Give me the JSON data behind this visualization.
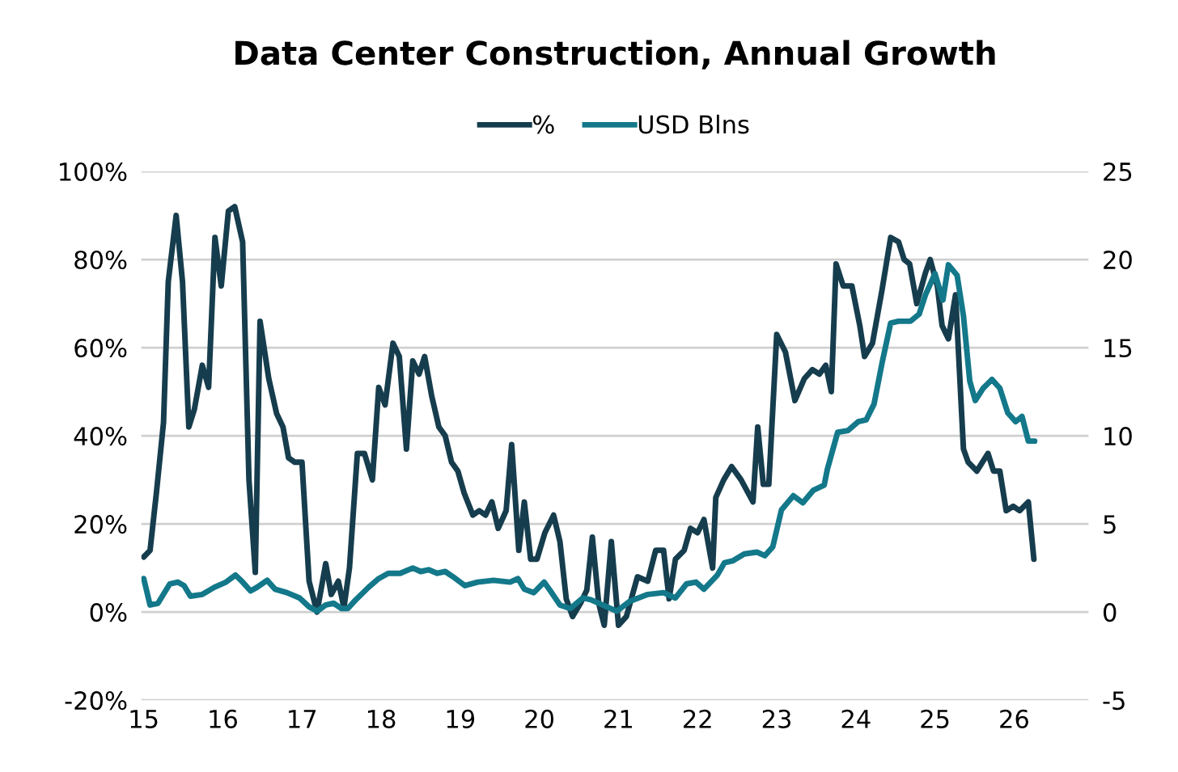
{
  "chart_data": {
    "type": "line",
    "title": "Data Center Construction, Annual Growth",
    "legend": "top",
    "grid": "y",
    "xlim": [
      14.97,
      26.94
    ],
    "xticks": [
      15,
      16,
      17,
      18,
      19,
      20,
      21,
      22,
      23,
      24,
      25,
      26
    ],
    "ylim": [
      -20,
      100
    ],
    "yticks": [
      {
        "value": -20,
        "label": "-20%"
      },
      {
        "value": 0,
        "label": "0%"
      },
      {
        "value": 20,
        "label": "20%"
      },
      {
        "value": 40,
        "label": "40%"
      },
      {
        "value": 60,
        "label": "60%"
      },
      {
        "value": 80,
        "label": "80%"
      },
      {
        "value": 100,
        "label": "100%"
      }
    ],
    "y2lim": [
      -5,
      25
    ],
    "y2ticks": [
      -5,
      0,
      5,
      10,
      15,
      20,
      25
    ],
    "series": [
      {
        "name": "%",
        "color": "#163d4d",
        "x": [
          15.0,
          15.08,
          15.16,
          15.25,
          15.31,
          15.41,
          15.49,
          15.57,
          15.64,
          15.74,
          15.82,
          15.9,
          15.98,
          16.07,
          16.15,
          16.25,
          16.33,
          16.41,
          16.47,
          16.58,
          16.68,
          16.76,
          16.83,
          16.91,
          17.0,
          17.09,
          17.19,
          17.3,
          17.37,
          17.46,
          17.53,
          17.6,
          17.7,
          17.79,
          17.89,
          17.97,
          18.05,
          18.15,
          18.23,
          18.32,
          18.4,
          18.48,
          18.55,
          18.64,
          18.73,
          18.81,
          18.89,
          18.97,
          19.05,
          19.16,
          19.24,
          19.32,
          19.4,
          19.48,
          19.58,
          19.65,
          19.74,
          19.81,
          19.89,
          19.97,
          20.07,
          20.18,
          20.26,
          20.34,
          20.42,
          20.52,
          20.6,
          20.67,
          20.75,
          20.82,
          20.91,
          21.0,
          21.1,
          21.24,
          21.37,
          21.47,
          21.57,
          21.64,
          21.72,
          21.83,
          21.91,
          22.0,
          22.08,
          22.19,
          22.23,
          22.33,
          22.43,
          22.55,
          22.7,
          22.76,
          22.83,
          22.9,
          23.0,
          23.11,
          23.23,
          23.35,
          23.45,
          23.54,
          23.62,
          23.69,
          23.75,
          23.84,
          23.95,
          24.05,
          24.11,
          24.21,
          24.33,
          24.44,
          24.54,
          24.61,
          24.68,
          24.77,
          24.88,
          24.94,
          25.03,
          25.09,
          25.17,
          25.26,
          25.36,
          25.42,
          25.53,
          25.67,
          25.74,
          25.82,
          25.9,
          25.99,
          26.07,
          26.18,
          26.25
        ],
        "values": [
          12.5,
          14,
          27,
          43,
          75,
          90,
          75,
          42,
          46,
          56,
          51,
          85,
          74,
          91,
          92,
          84,
          30,
          9,
          66,
          53,
          45,
          42,
          35,
          34,
          34,
          7,
          0,
          11,
          4,
          7,
          1,
          10,
          36,
          36,
          30,
          51,
          47,
          61,
          58,
          37,
          57,
          54,
          58,
          49,
          42,
          40,
          34,
          32,
          27,
          22,
          23,
          22,
          25,
          19,
          23,
          38,
          14,
          25,
          12,
          12,
          18,
          22,
          16,
          3,
          -1,
          2,
          5,
          17,
          2,
          -3,
          16,
          -3,
          -1,
          8,
          7,
          14,
          14,
          3,
          12,
          14,
          19,
          18,
          21,
          10,
          26,
          30,
          33,
          30,
          25,
          42,
          29,
          29,
          63,
          59,
          48,
          53,
          55,
          54,
          56,
          50,
          79,
          74,
          74,
          65,
          58,
          61,
          73,
          85,
          84,
          80,
          79,
          70,
          77,
          80,
          74,
          65,
          62,
          72,
          37,
          34,
          32,
          36,
          32,
          32,
          23,
          24,
          23,
          25,
          12
        ]
      },
      {
        "name": "USD Blns",
        "color": "#13788a",
        "axis": "y2",
        "x": [
          15.0,
          15.08,
          15.18,
          15.33,
          15.43,
          15.51,
          15.59,
          15.74,
          15.89,
          16.04,
          16.16,
          16.25,
          16.35,
          16.43,
          16.56,
          16.66,
          16.81,
          16.97,
          17.09,
          17.19,
          17.3,
          17.4,
          17.5,
          17.58,
          17.68,
          17.84,
          17.97,
          18.09,
          18.24,
          18.4,
          18.5,
          18.6,
          18.71,
          18.81,
          18.91,
          19.06,
          19.22,
          19.42,
          19.63,
          19.73,
          19.81,
          19.93,
          20.06,
          20.14,
          20.26,
          20.39,
          20.55,
          20.65,
          20.8,
          20.98,
          21.14,
          21.37,
          21.57,
          21.72,
          21.86,
          21.98,
          22.08,
          22.25,
          22.34,
          22.44,
          22.59,
          22.75,
          22.85,
          22.95,
          23.06,
          23.21,
          23.33,
          23.46,
          23.6,
          23.64,
          23.77,
          23.9,
          24.03,
          24.13,
          24.23,
          24.33,
          24.44,
          24.54,
          24.69,
          24.8,
          24.88,
          25.0,
          25.1,
          25.17,
          25.28,
          25.36,
          25.44,
          25.51,
          25.61,
          25.72,
          25.82,
          25.92,
          26.02,
          26.1,
          26.18,
          26.26
        ],
        "values": [
          1.9,
          0.4,
          0.5,
          1.6,
          1.7,
          1.5,
          0.9,
          1.0,
          1.4,
          1.7,
          2.1,
          1.7,
          1.2,
          1.4,
          1.8,
          1.3,
          1.1,
          0.8,
          0.3,
          0.05,
          0.4,
          0.5,
          0.2,
          0.2,
          0.7,
          1.4,
          1.9,
          2.2,
          2.2,
          2.5,
          2.3,
          2.4,
          2.2,
          2.3,
          2.0,
          1.5,
          1.7,
          1.8,
          1.7,
          1.9,
          1.3,
          1.1,
          1.7,
          1.2,
          0.4,
          0.2,
          0.8,
          0.7,
          0.4,
          0.05,
          0.6,
          1.0,
          1.1,
          0.8,
          1.6,
          1.7,
          1.3,
          2.1,
          2.8,
          2.9,
          3.3,
          3.4,
          3.2,
          3.7,
          5.8,
          6.6,
          6.2,
          6.9,
          7.2,
          8.1,
          10.2,
          10.3,
          10.8,
          10.9,
          11.8,
          14.1,
          16.4,
          16.5,
          16.5,
          16.9,
          18.0,
          19.2,
          17.7,
          19.7,
          19.1,
          16.8,
          13.1,
          12.0,
          12.7,
          13.2,
          12.7,
          11.3,
          10.8,
          11.1,
          9.7,
          9.7
        ]
      }
    ]
  }
}
